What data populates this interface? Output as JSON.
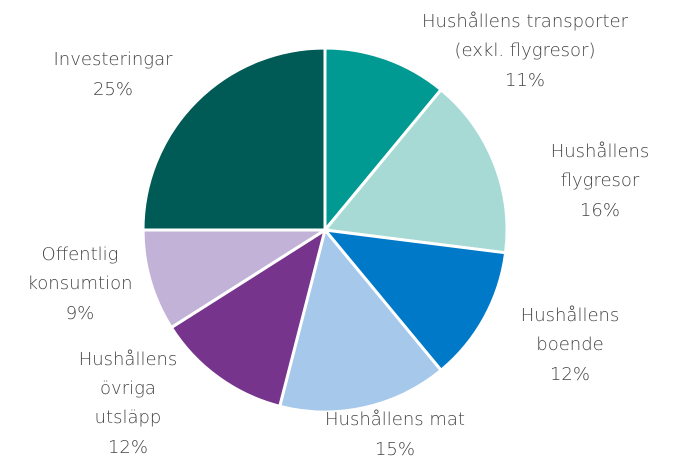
{
  "chart_data": {
    "type": "pie",
    "categories": [
      [
        "Hushållens transporter",
        "(exkl. flygresor)"
      ],
      [
        "Hushållens",
        "flygresor"
      ],
      [
        "Hushållens",
        "boende"
      ],
      [
        "Hushållens mat"
      ],
      [
        "Hushållens",
        "övriga",
        "utsläpp"
      ],
      [
        "Offentlig",
        "konsumtion"
      ],
      [
        "Investeringar"
      ]
    ],
    "values": [
      11,
      16,
      12,
      15,
      12,
      9,
      25
    ],
    "value_labels": [
      "11%",
      "16%",
      "12%",
      "15%",
      "12%",
      "9%",
      "25%"
    ],
    "colors": [
      "#009a93",
      "#a8dad5",
      "#0079c8",
      "#a6c8ea",
      "#76348c",
      "#c2b2d8",
      "#005a55"
    ]
  }
}
